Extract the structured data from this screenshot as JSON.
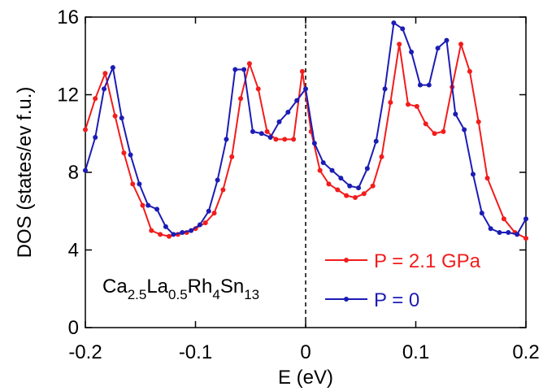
{
  "chart_data": {
    "type": "line",
    "xlabel": "E (eV)",
    "ylabel": "DOS (states/ev f.u.)",
    "annotation": [
      "Ca",
      "2.5",
      "La",
      "0.5",
      "Rh",
      "4",
      "Sn",
      "13"
    ],
    "xlim": [
      -0.2,
      0.2
    ],
    "xticks": [
      -0.2,
      -0.1,
      0,
      0.1,
      0.2
    ],
    "ylim": [
      0,
      16
    ],
    "yticks": [
      0,
      4,
      8,
      12,
      16
    ],
    "series": [
      {
        "name": "P = 2.1 GPa",
        "color": "#f21c1c",
        "x": [
          -0.2,
          -0.191,
          -0.182,
          -0.173,
          -0.165,
          -0.157,
          -0.148,
          -0.14,
          -0.132,
          -0.124,
          -0.116,
          -0.108,
          -0.1,
          -0.091,
          -0.083,
          -0.075,
          -0.067,
          -0.059,
          -0.051,
          -0.043,
          -0.035,
          -0.027,
          -0.019,
          -0.011,
          -0.003,
          0.005,
          0.013,
          0.021,
          0.029,
          0.037,
          0.045,
          0.053,
          0.061,
          0.069,
          0.077,
          0.085,
          0.093,
          0.101,
          0.109,
          0.117,
          0.125,
          0.133,
          0.141,
          0.149,
          0.157,
          0.165,
          0.18,
          0.19,
          0.2
        ],
        "values": [
          10.2,
          11.8,
          13.1,
          10.9,
          9.0,
          7.4,
          6.3,
          5.0,
          4.8,
          4.7,
          4.8,
          4.9,
          5.1,
          5.4,
          5.9,
          7.1,
          8.8,
          11.8,
          13.6,
          12.3,
          10.1,
          9.7,
          9.7,
          9.7,
          13.2,
          10.1,
          8.1,
          7.4,
          7.1,
          6.8,
          6.7,
          6.9,
          7.3,
          8.8,
          11.6,
          14.6,
          11.5,
          11.4,
          10.5,
          10.0,
          10.1,
          12.4,
          14.6,
          13.2,
          10.6,
          7.7,
          5.6,
          4.9,
          4.6
        ]
      },
      {
        "name": "P = 0",
        "color": "#1c1cb4",
        "x": [
          -0.2,
          -0.191,
          -0.183,
          -0.175,
          -0.167,
          -0.159,
          -0.151,
          -0.143,
          -0.135,
          -0.127,
          -0.12,
          -0.112,
          -0.104,
          -0.096,
          -0.088,
          -0.08,
          -0.072,
          -0.064,
          -0.056,
          -0.048,
          -0.04,
          -0.032,
          -0.024,
          -0.016,
          -0.008,
          0,
          0.008,
          0.016,
          0.024,
          0.032,
          0.04,
          0.048,
          0.056,
          0.064,
          0.072,
          0.08,
          0.088,
          0.096,
          0.104,
          0.112,
          0.12,
          0.128,
          0.136,
          0.144,
          0.152,
          0.16,
          0.168,
          0.176,
          0.184,
          0.192,
          0.2
        ],
        "values": [
          8.1,
          9.8,
          12.3,
          13.4,
          10.8,
          8.9,
          7.4,
          6.3,
          6.1,
          5.2,
          4.8,
          4.9,
          5.0,
          5.3,
          6.0,
          7.6,
          9.7,
          13.3,
          13.3,
          10.1,
          10.0,
          9.8,
          10.6,
          11.1,
          11.7,
          12.3,
          9.5,
          8.5,
          8.1,
          7.7,
          7.3,
          7.2,
          8.2,
          9.6,
          12.3,
          15.7,
          15.4,
          14.2,
          12.5,
          12.5,
          14.4,
          14.8,
          11.0,
          10.2,
          7.9,
          5.9,
          5.1,
          4.9,
          4.9,
          4.8,
          5.6
        ]
      }
    ]
  }
}
